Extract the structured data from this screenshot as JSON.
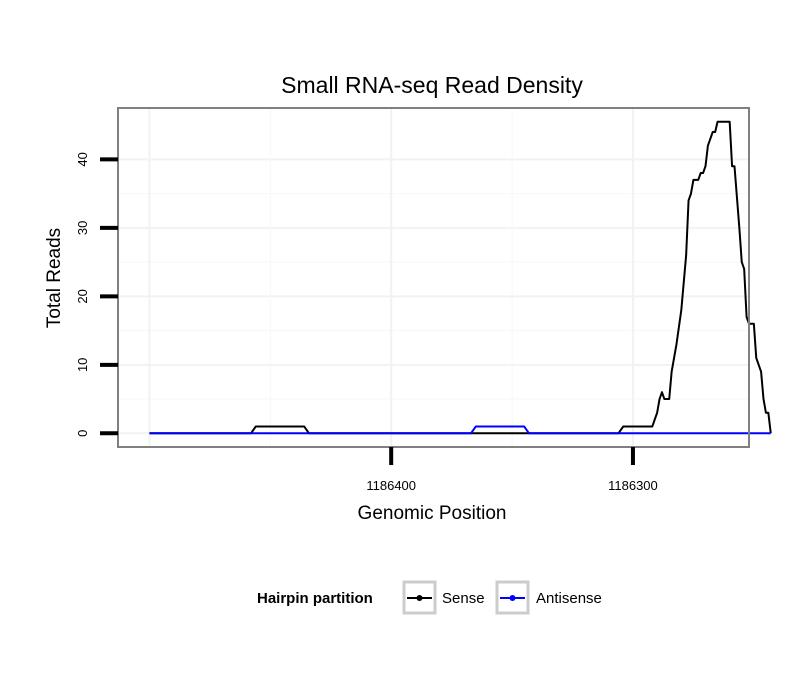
{
  "chart_data": {
    "type": "line",
    "title": "Small RNA-seq Read Density",
    "xlabel": "Genomic Position",
    "ylabel": "Total Reads",
    "x_reversed": true,
    "xlim": [
      1186513,
      1186252
    ],
    "ylim": [
      -2,
      47.5
    ],
    "x_ticks": [
      1186400,
      1186300
    ],
    "x_tick_labels": [
      "1186400",
      "1186300"
    ],
    "y_ticks": [
      0,
      10,
      20,
      30,
      40
    ],
    "y_tick_labels": [
      "0",
      "10",
      "20",
      "30",
      "40"
    ],
    "grid": true,
    "legend": {
      "title": "Hairpin partition",
      "position": "bottom",
      "entries": [
        "Sense",
        "Antisense"
      ]
    },
    "series": [
      {
        "name": "Sense",
        "color": "#000000",
        "points": [
          [
            1186500,
            0
          ],
          [
            1186458,
            0
          ],
          [
            1186456,
            1
          ],
          [
            1186436,
            1
          ],
          [
            1186434,
            0
          ],
          [
            1186306,
            0
          ],
          [
            1186304,
            1
          ],
          [
            1186292,
            1
          ],
          [
            1186290,
            3
          ],
          [
            1186289,
            5
          ],
          [
            1186288,
            6
          ],
          [
            1186287,
            5
          ],
          [
            1186285,
            5
          ],
          [
            1186284,
            9
          ],
          [
            1186282,
            13
          ],
          [
            1186280,
            18
          ],
          [
            1186278,
            26
          ],
          [
            1186277,
            34
          ],
          [
            1186276,
            35
          ],
          [
            1186275,
            37
          ],
          [
            1186273,
            37
          ],
          [
            1186272,
            38
          ],
          [
            1186271,
            38
          ],
          [
            1186270,
            39
          ],
          [
            1186269,
            42
          ],
          [
            1186268,
            43
          ],
          [
            1186267,
            44
          ],
          [
            1186266,
            44
          ],
          [
            1186265,
            45.5
          ],
          [
            1186260,
            45.5
          ],
          [
            1186259,
            39
          ],
          [
            1186258,
            39
          ],
          [
            1186256,
            30
          ],
          [
            1186255,
            25
          ],
          [
            1186254,
            24
          ],
          [
            1186253,
            17
          ],
          [
            1186252,
            16
          ],
          [
            1186250,
            16
          ],
          [
            1186249,
            11
          ],
          [
            1186248,
            10
          ],
          [
            1186247,
            9
          ],
          [
            1186246,
            5
          ],
          [
            1186245,
            3
          ],
          [
            1186244,
            3
          ],
          [
            1186243,
            0
          ]
        ]
      },
      {
        "name": "Antisense",
        "color": "#0000ff",
        "points": [
          [
            1186500,
            0
          ],
          [
            1186458,
            0
          ],
          [
            1186434,
            0
          ],
          [
            1186367,
            0
          ],
          [
            1186365,
            1
          ],
          [
            1186345,
            1
          ],
          [
            1186343,
            0
          ],
          [
            1186300,
            0
          ],
          [
            1186243,
            0
          ]
        ]
      }
    ]
  }
}
